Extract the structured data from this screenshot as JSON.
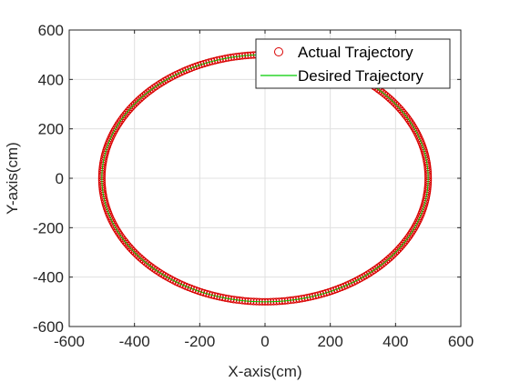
{
  "chart_data": {
    "type": "scatter",
    "xlabel": "X-axis(cm)",
    "ylabel": "Y-axis(cm)",
    "xlim": [
      -600,
      600
    ],
    "ylim": [
      -600,
      600
    ],
    "xticks": [
      -600,
      -400,
      -200,
      0,
      200,
      400,
      600
    ],
    "yticks": [
      -600,
      -400,
      -200,
      0,
      200,
      400,
      600
    ],
    "xtick_labels": [
      "-600",
      "-400",
      "-200",
      "0",
      "200",
      "400",
      "600"
    ],
    "ytick_labels": [
      "-600",
      "-400",
      "-200",
      "0",
      "200",
      "400",
      "600"
    ],
    "grid": true,
    "legend_position": "top-right",
    "series": [
      {
        "name": "Actual Trajectory",
        "marker": "circle",
        "color": "#d90000",
        "shape": "circle",
        "center": [
          0,
          0
        ],
        "radius": 500,
        "point_count": 360
      },
      {
        "name": "Desired Trajectory",
        "marker": "line",
        "color": "#00cc00",
        "shape": "circle",
        "center": [
          0,
          0
        ],
        "radius": 500
      }
    ]
  }
}
